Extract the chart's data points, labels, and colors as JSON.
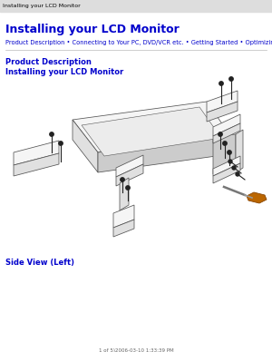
{
  "bg_color": "#ffffff",
  "tab_text": "Installing your LCD Monitor",
  "tab_text_color": "#000000",
  "tab_fontsize": 4.5,
  "title": "Installing your LCD Monitor",
  "title_color": "#0000cc",
  "title_fontsize": 9,
  "nav_text": "Product Description • Connecting to Your PC, DVD/VCR etc. • Getting Started • Optimizing Performance",
  "nav_color": "#0000cc",
  "nav_fontsize": 4.8,
  "section1": "Product Description",
  "section1_color": "#0000cc",
  "section1_fontsize": 6,
  "section2": "Installing your LCD Monitor",
  "section2_color": "#0000cc",
  "section2_fontsize": 6,
  "caption": "Side View (Left)",
  "caption_color": "#0000cc",
  "caption_fontsize": 6,
  "footer": "1 of 5)2006-03-10 1:33:39 PM",
  "footer_color": "#666666",
  "footer_fontsize": 4,
  "divider_color": "#bbbbbb",
  "line_color": "#555555",
  "face_light": "#f5f5f5",
  "face_mid": "#e0e0e0",
  "face_dark": "#cccccc",
  "screw_color": "#222222",
  "driver_handle": "#bb6600",
  "driver_shaft": "#999999"
}
